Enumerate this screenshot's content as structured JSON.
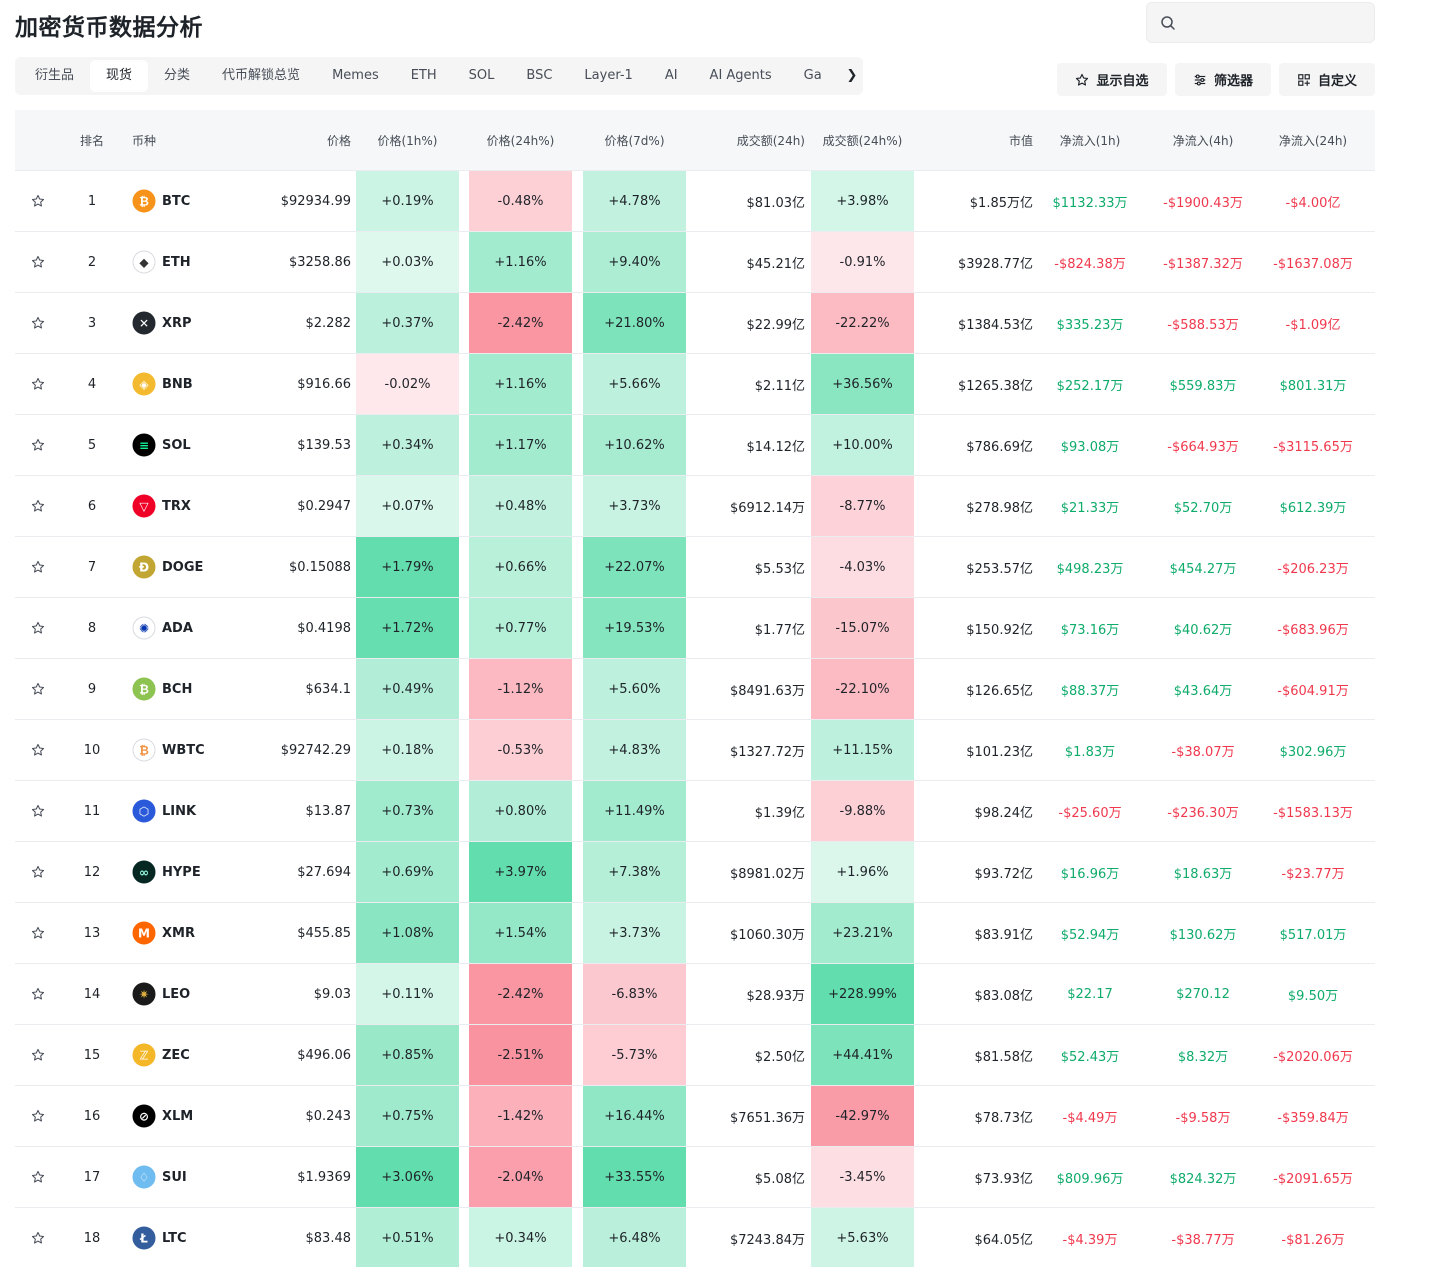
{
  "page": {
    "title": "加密货币数据分析"
  },
  "search": {
    "placeholder": ""
  },
  "tabs": [
    {
      "label": "衍生品",
      "active": false
    },
    {
      "label": "现货",
      "active": true
    },
    {
      "label": "分类",
      "active": false
    },
    {
      "label": "代币解锁总览",
      "active": false
    },
    {
      "label": "Memes",
      "active": false
    },
    {
      "label": "ETH",
      "active": false
    },
    {
      "label": "SOL",
      "active": false
    },
    {
      "label": "BSC",
      "active": false
    },
    {
      "label": "Layer-1",
      "active": false
    },
    {
      "label": "AI",
      "active": false
    },
    {
      "label": "AI Agents",
      "active": false
    },
    {
      "label": "Ga",
      "active": false
    }
  ],
  "tab_scroll_icon": "chevron-right-icon",
  "actions": {
    "watchlist_label": "显示自选",
    "filter_label": "筛选器",
    "custom_label": "自定义"
  },
  "colors": {
    "positive": "#0eab6a",
    "negative": "#f0384d",
    "heat_positive_base": "#0ecb81",
    "heat_negative_base": "#f6465d"
  },
  "table": {
    "headers": {
      "rank": "排名",
      "coin": "币种",
      "price": "价格",
      "p1h": "价格(1h%)",
      "p24h": "价格(24h%)",
      "p7d": "价格(7d%)",
      "vol": "成交额(24h)",
      "vol24": "成交额(24h%)",
      "mcap": "市值",
      "nf1": "净流入(1h)",
      "nf4": "净流入(4h)",
      "nf24": "净流入(24h)"
    },
    "rows": [
      {
        "rank": "1",
        "symbol": "BTC",
        "logo": {
          "bg": "#f7931a",
          "fg": "#ffffff",
          "glyph": "₿"
        },
        "price": "$92934.99",
        "p1h": "+0.19%",
        "p24h": "-0.48%",
        "p7d": "+4.78%",
        "vol": "$81.03亿",
        "vol24": "+3.98%",
        "mcap": "$1.85万亿",
        "nf1": "$1132.33万",
        "nf4": "-$1900.43万",
        "nf24": "-$4.00亿"
      },
      {
        "rank": "2",
        "symbol": "ETH",
        "logo": {
          "bg": "#ffffff",
          "fg": "#343434",
          "glyph": "◆"
        },
        "price": "$3258.86",
        "p1h": "+0.03%",
        "p24h": "+1.16%",
        "p7d": "+9.40%",
        "vol": "$45.21亿",
        "vol24": "-0.91%",
        "mcap": "$3928.77亿",
        "nf1": "-$824.38万",
        "nf4": "-$1387.32万",
        "nf24": "-$1637.08万"
      },
      {
        "rank": "3",
        "symbol": "XRP",
        "logo": {
          "bg": "#23292f",
          "fg": "#ffffff",
          "glyph": "✕"
        },
        "price": "$2.282",
        "p1h": "+0.37%",
        "p24h": "-2.42%",
        "p7d": "+21.80%",
        "vol": "$22.99亿",
        "vol24": "-22.22%",
        "mcap": "$1384.53亿",
        "nf1": "$335.23万",
        "nf4": "-$588.53万",
        "nf24": "-$1.09亿"
      },
      {
        "rank": "4",
        "symbol": "BNB",
        "logo": {
          "bg": "#f3ba2f",
          "fg": "#ffffff",
          "glyph": "◈"
        },
        "price": "$916.66",
        "p1h": "-0.02%",
        "p24h": "+1.16%",
        "p7d": "+5.66%",
        "vol": "$2.11亿",
        "vol24": "+36.56%",
        "mcap": "$1265.38亿",
        "nf1": "$252.17万",
        "nf4": "$559.83万",
        "nf24": "$801.31万"
      },
      {
        "rank": "5",
        "symbol": "SOL",
        "logo": {
          "bg": "#000000",
          "fg": "#14f195",
          "glyph": "≡"
        },
        "price": "$139.53",
        "p1h": "+0.34%",
        "p24h": "+1.17%",
        "p7d": "+10.62%",
        "vol": "$14.12亿",
        "vol24": "+10.00%",
        "mcap": "$786.69亿",
        "nf1": "$93.08万",
        "nf4": "-$664.93万",
        "nf24": "-$3115.65万"
      },
      {
        "rank": "6",
        "symbol": "TRX",
        "logo": {
          "bg": "#ef0027",
          "fg": "#ffffff",
          "glyph": "▽"
        },
        "price": "$0.2947",
        "p1h": "+0.07%",
        "p24h": "+0.48%",
        "p7d": "+3.73%",
        "vol": "$6912.14万",
        "vol24": "-8.77%",
        "mcap": "$278.98亿",
        "nf1": "$21.33万",
        "nf4": "$52.70万",
        "nf24": "$612.39万"
      },
      {
        "rank": "7",
        "symbol": "DOGE",
        "logo": {
          "bg": "#c2a633",
          "fg": "#ffffff",
          "glyph": "Ð"
        },
        "price": "$0.15088",
        "p1h": "+1.79%",
        "p24h": "+0.66%",
        "p7d": "+22.07%",
        "vol": "$5.53亿",
        "vol24": "-4.03%",
        "mcap": "$253.57亿",
        "nf1": "$498.23万",
        "nf4": "$454.27万",
        "nf24": "-$206.23万"
      },
      {
        "rank": "8",
        "symbol": "ADA",
        "logo": {
          "bg": "#ffffff",
          "fg": "#0033ad",
          "glyph": "✺"
        },
        "price": "$0.4198",
        "p1h": "+1.72%",
        "p24h": "+0.77%",
        "p7d": "+19.53%",
        "vol": "$1.77亿",
        "vol24": "-15.07%",
        "mcap": "$150.92亿",
        "nf1": "$73.16万",
        "nf4": "$40.62万",
        "nf24": "-$683.96万"
      },
      {
        "rank": "9",
        "symbol": "BCH",
        "logo": {
          "bg": "#8dc351",
          "fg": "#ffffff",
          "glyph": "₿"
        },
        "price": "$634.1",
        "p1h": "+0.49%",
        "p24h": "-1.12%",
        "p7d": "+5.60%",
        "vol": "$8491.63万",
        "vol24": "-22.10%",
        "mcap": "$126.65亿",
        "nf1": "$88.37万",
        "nf4": "$43.64万",
        "nf24": "-$604.91万"
      },
      {
        "rank": "10",
        "symbol": "WBTC",
        "logo": {
          "bg": "#ffffff",
          "fg": "#f09242",
          "glyph": "₿"
        },
        "price": "$92742.29",
        "p1h": "+0.18%",
        "p24h": "-0.53%",
        "p7d": "+4.83%",
        "vol": "$1327.72万",
        "vol24": "+11.15%",
        "mcap": "$101.23亿",
        "nf1": "$1.83万",
        "nf4": "-$38.07万",
        "nf24": "$302.96万"
      },
      {
        "rank": "11",
        "symbol": "LINK",
        "logo": {
          "bg": "#2a5ada",
          "fg": "#ffffff",
          "glyph": "⬡"
        },
        "price": "$13.87",
        "p1h": "+0.73%",
        "p24h": "+0.80%",
        "p7d": "+11.49%",
        "vol": "$1.39亿",
        "vol24": "-9.88%",
        "mcap": "$98.24亿",
        "nf1": "-$25.60万",
        "nf4": "-$236.30万",
        "nf24": "-$1583.13万"
      },
      {
        "rank": "12",
        "symbol": "HYPE",
        "logo": {
          "bg": "#072723",
          "fg": "#97fce4",
          "glyph": "∞"
        },
        "price": "$27.694",
        "p1h": "+0.69%",
        "p24h": "+3.97%",
        "p7d": "+7.38%",
        "vol": "$8981.02万",
        "vol24": "+1.96%",
        "mcap": "$93.72亿",
        "nf1": "$16.96万",
        "nf4": "$18.63万",
        "nf24": "-$23.77万"
      },
      {
        "rank": "13",
        "symbol": "XMR",
        "logo": {
          "bg": "#ff6600",
          "fg": "#ffffff",
          "glyph": "M"
        },
        "price": "$455.85",
        "p1h": "+1.08%",
        "p24h": "+1.54%",
        "p7d": "+3.73%",
        "vol": "$1060.30万",
        "vol24": "+23.21%",
        "mcap": "$83.91亿",
        "nf1": "$52.94万",
        "nf4": "$130.62万",
        "nf24": "$517.01万"
      },
      {
        "rank": "14",
        "symbol": "LEO",
        "logo": {
          "bg": "#1a1a1a",
          "fg": "#e0b040",
          "glyph": "✷"
        },
        "price": "$9.03",
        "p1h": "+0.11%",
        "p24h": "-2.42%",
        "p7d": "-6.83%",
        "vol": "$28.93万",
        "vol24": "+228.99%",
        "mcap": "$83.08亿",
        "nf1": "$22.17",
        "nf4": "$270.12",
        "nf24": "$9.50万"
      },
      {
        "rank": "15",
        "symbol": "ZEC",
        "logo": {
          "bg": "#f4b728",
          "fg": "#ffffff",
          "glyph": "ℤ"
        },
        "price": "$496.06",
        "p1h": "+0.85%",
        "p24h": "-2.51%",
        "p7d": "-5.73%",
        "vol": "$2.50亿",
        "vol24": "+44.41%",
        "mcap": "$81.58亿",
        "nf1": "$52.43万",
        "nf4": "$8.32万",
        "nf24": "-$2020.06万"
      },
      {
        "rank": "16",
        "symbol": "XLM",
        "logo": {
          "bg": "#000000",
          "fg": "#ffffff",
          "glyph": "⊘"
        },
        "price": "$0.243",
        "p1h": "+0.75%",
        "p24h": "-1.42%",
        "p7d": "+16.44%",
        "vol": "$7651.36万",
        "vol24": "-42.97%",
        "mcap": "$78.73亿",
        "nf1": "-$4.49万",
        "nf4": "-$9.58万",
        "nf24": "-$359.84万"
      },
      {
        "rank": "17",
        "symbol": "SUI",
        "logo": {
          "bg": "#6fbcf0",
          "fg": "#ffffff",
          "glyph": "♢"
        },
        "price": "$1.9369",
        "p1h": "+3.06%",
        "p24h": "-2.04%",
        "p7d": "+33.55%",
        "vol": "$5.08亿",
        "vol24": "-3.45%",
        "mcap": "$73.93亿",
        "nf1": "$809.96万",
        "nf4": "$824.32万",
        "nf24": "-$2091.65万"
      },
      {
        "rank": "18",
        "symbol": "LTC",
        "logo": {
          "bg": "#345d9d",
          "fg": "#ffffff",
          "glyph": "Ł"
        },
        "price": "$83.48",
        "p1h": "+0.51%",
        "p24h": "+0.34%",
        "p7d": "+6.48%",
        "vol": "$7243.84万",
        "vol24": "+5.63%",
        "mcap": "$64.05亿",
        "nf1": "-$4.39万",
        "nf4": "-$38.77万",
        "nf24": "-$81.26万"
      }
    ]
  }
}
